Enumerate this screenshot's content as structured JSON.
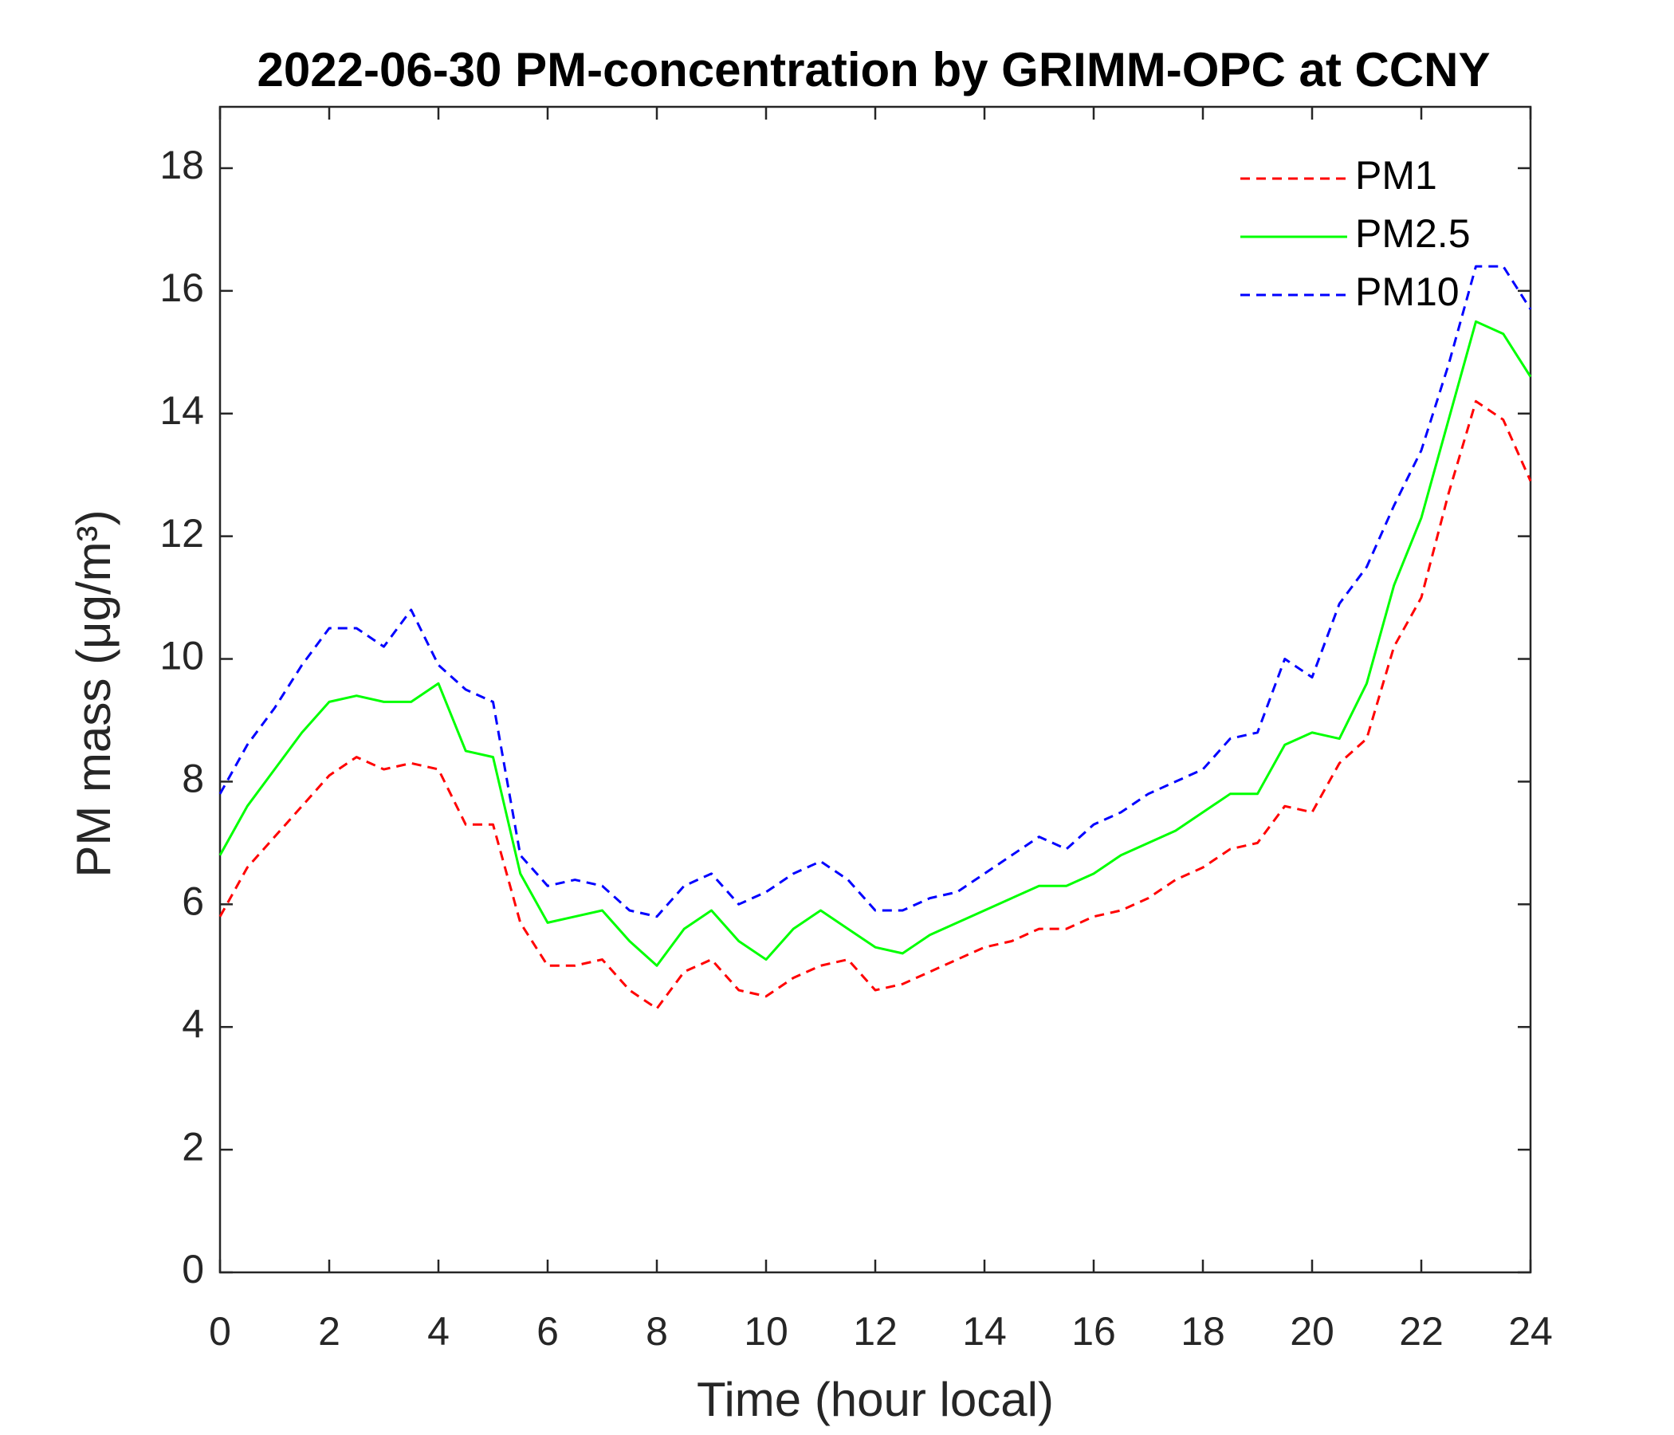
{
  "chart_data": {
    "type": "line",
    "title": "2022-06-30 PM-concentration by GRIMM-OPC at CCNY",
    "xlabel": "Time (hour local)",
    "ylabel": "PM mass (μg/m³)",
    "x": [
      0,
      0.5,
      1,
      1.5,
      2,
      2.5,
      3,
      3.5,
      4,
      4.5,
      5,
      5.5,
      6,
      6.5,
      7,
      7.5,
      8,
      8.5,
      9,
      9.5,
      10,
      10.5,
      11,
      11.5,
      12,
      12.5,
      13,
      13.5,
      14,
      14.5,
      15,
      15.5,
      16,
      16.5,
      17,
      17.5,
      18,
      18.5,
      19,
      19.5,
      20,
      20.5,
      21,
      21.5,
      22,
      22.5,
      23,
      23.5,
      24
    ],
    "series": [
      {
        "name": "PM1",
        "color": "#ff0000",
        "linestyle": "dashed",
        "values": [
          5.8,
          6.6,
          7.1,
          7.6,
          8.1,
          8.4,
          8.2,
          8.3,
          8.2,
          7.3,
          7.3,
          5.7,
          5.0,
          5.0,
          5.1,
          4.6,
          4.3,
          4.9,
          5.1,
          4.6,
          4.5,
          4.8,
          5.0,
          5.1,
          4.6,
          4.7,
          4.9,
          5.1,
          5.3,
          5.4,
          5.6,
          5.6,
          5.8,
          5.9,
          6.1,
          6.4,
          6.6,
          6.9,
          7.0,
          7.6,
          7.5,
          8.3,
          8.7,
          10.2,
          11.0,
          12.7,
          14.2,
          13.9,
          12.9
        ]
      },
      {
        "name": "PM2.5",
        "color": "#00ff00",
        "linestyle": "solid",
        "values": [
          6.8,
          7.6,
          8.2,
          8.8,
          9.3,
          9.4,
          9.3,
          9.3,
          9.6,
          8.5,
          8.4,
          6.5,
          5.7,
          5.8,
          5.9,
          5.4,
          5.0,
          5.6,
          5.9,
          5.4,
          5.1,
          5.6,
          5.9,
          5.6,
          5.3,
          5.2,
          5.5,
          5.7,
          5.9,
          6.1,
          6.3,
          6.3,
          6.5,
          6.8,
          7.0,
          7.2,
          7.5,
          7.8,
          7.8,
          8.6,
          8.8,
          8.7,
          9.6,
          11.2,
          12.3,
          13.9,
          15.5,
          15.3,
          14.6
        ]
      },
      {
        "name": "PM10",
        "color": "#0000ff",
        "linestyle": "dashed",
        "values": [
          7.8,
          8.6,
          9.2,
          9.9,
          10.5,
          10.5,
          10.2,
          10.8,
          9.9,
          9.5,
          9.3,
          6.8,
          6.3,
          6.4,
          6.3,
          5.9,
          5.8,
          6.3,
          6.5,
          6.0,
          6.2,
          6.5,
          6.7,
          6.4,
          5.9,
          5.9,
          6.1,
          6.2,
          6.5,
          6.8,
          7.1,
          6.9,
          7.3,
          7.5,
          7.8,
          8.0,
          8.2,
          8.7,
          8.8,
          10.0,
          9.7,
          10.9,
          11.5,
          12.5,
          13.4,
          14.8,
          16.4,
          16.4,
          15.7
        ]
      }
    ],
    "xlim": [
      0,
      24
    ],
    "xticks": [
      0,
      2,
      4,
      6,
      8,
      10,
      12,
      14,
      16,
      18,
      20,
      22,
      24
    ],
    "ylim": [
      0,
      19
    ],
    "yticks": [
      0,
      2,
      4,
      6,
      8,
      10,
      12,
      14,
      16,
      18
    ],
    "grid": false,
    "legend": "top-right"
  }
}
